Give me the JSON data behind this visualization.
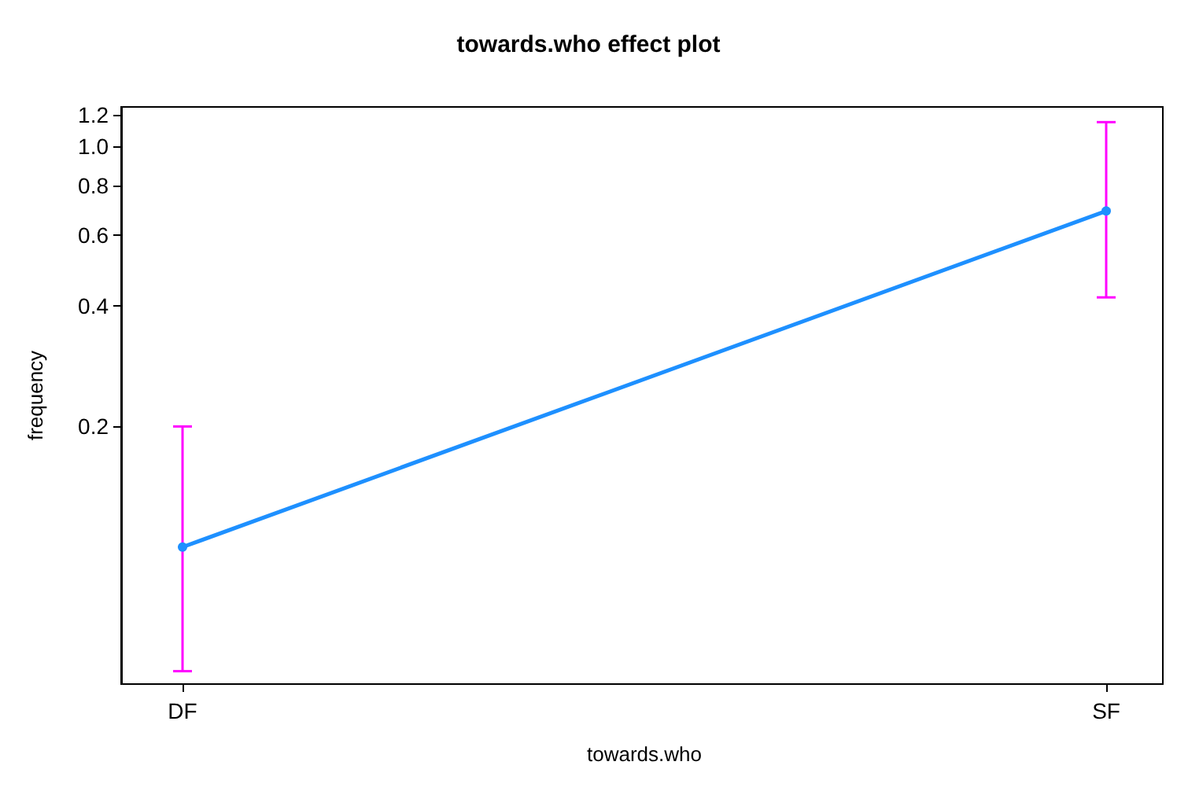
{
  "chart_data": {
    "type": "line",
    "title": "towards.who effect plot",
    "xlabel": "towards.who",
    "ylabel": "frequency",
    "categories": [
      "DF",
      "SF"
    ],
    "series": [
      {
        "color": "#1e90ff",
        "values": [
          0.1,
          0.69
        ],
        "errors": [
          [
            0.049,
            0.2
          ],
          [
            0.42,
            1.15
          ]
        ]
      }
    ],
    "log": "y",
    "ylim": [
      0.0455,
      1.255
    ],
    "yticks": [
      0.2,
      0.4,
      0.6,
      0.8,
      {
        "value": 1,
        "label": "1.0"
      },
      1.2
    ],
    "marker": "circle",
    "line_style": "solid",
    "grid": false
  }
}
